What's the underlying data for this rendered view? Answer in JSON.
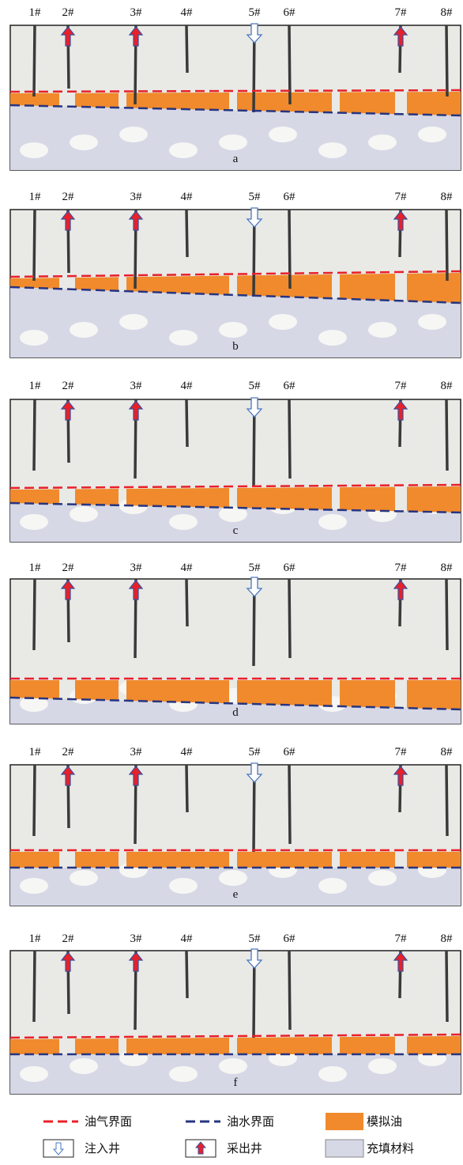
{
  "panels": [
    {
      "label": "a",
      "wells": [
        "1#",
        "2#",
        "3#",
        "4#",
        "5#",
        "6#",
        "7#",
        "8#"
      ]
    },
    {
      "label": "b",
      "wells": [
        "1#",
        "2#",
        "3#",
        "4#",
        "5#",
        "6#",
        "7#",
        "8#"
      ]
    },
    {
      "label": "c",
      "wells": [
        "1#",
        "2#",
        "3#",
        "4#",
        "5#",
        "6#",
        "7#",
        "8#"
      ]
    },
    {
      "label": "d",
      "wells": [
        "1#",
        "2#",
        "3#",
        "4#",
        "5#",
        "6#",
        "7#",
        "8#"
      ]
    },
    {
      "label": "e",
      "wells": [
        "1#",
        "2#",
        "3#",
        "4#",
        "5#",
        "6#",
        "7#",
        "8#"
      ]
    },
    {
      "label": "f",
      "wells": [
        "1#",
        "2#",
        "3#",
        "4#",
        "5#",
        "6#",
        "7#",
        "8#"
      ]
    }
  ],
  "legend": [
    {
      "label": "油气界面"
    },
    {
      "label": "油水界面"
    },
    {
      "label": "模拟油"
    },
    {
      "label": "注入井"
    },
    {
      "label": "采出井"
    },
    {
      "label": "充填材料"
    }
  ]
}
